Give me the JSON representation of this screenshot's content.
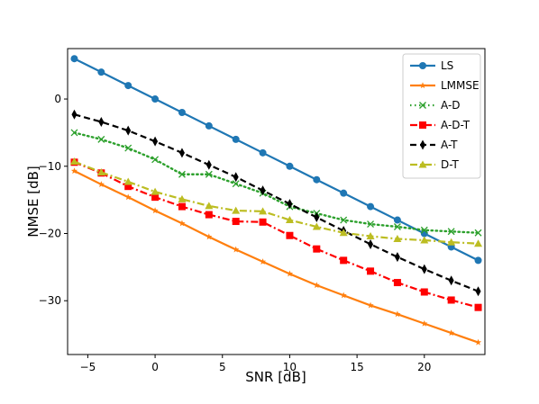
{
  "chart_data": {
    "type": "line",
    "title": "",
    "xlabel": "SNR [dB]",
    "ylabel": "NMSE [dB]",
    "xlim": [
      -6.5,
      24.5
    ],
    "ylim": [
      -38,
      7.5
    ],
    "xticks": [
      -5,
      0,
      5,
      10,
      15,
      20
    ],
    "yticks": [
      0,
      -10,
      -20,
      -30
    ],
    "grid": false,
    "legend_position": "top-right",
    "x": [
      -6,
      -4,
      -2,
      0,
      2,
      4,
      6,
      8,
      10,
      12,
      14,
      16,
      18,
      20,
      22,
      24
    ],
    "series": [
      {
        "name": "LS",
        "color": "#1f77b4",
        "style": "solid",
        "marker": "circle",
        "values": [
          6.0,
          4.0,
          2.0,
          0.0,
          -2.0,
          -4.0,
          -6.0,
          -8.0,
          -10.0,
          -12.0,
          -14.0,
          -16.0,
          -18.0,
          -20.0,
          -22.0,
          -24.0
        ]
      },
      {
        "name": "LMMSE",
        "color": "#ff7f0e",
        "style": "solid",
        "marker": "star",
        "values": [
          -10.7,
          -12.7,
          -14.6,
          -16.6,
          -18.5,
          -20.5,
          -22.4,
          -24.2,
          -26.0,
          -27.7,
          -29.2,
          -30.7,
          -32.0,
          -33.4,
          -34.8,
          -36.2
        ]
      },
      {
        "name": "A-D",
        "color": "#2ca02c",
        "style": "dotted",
        "marker": "x",
        "values": [
          -5.0,
          -6.0,
          -7.3,
          -9.0,
          -11.2,
          -11.2,
          -12.6,
          -14.0,
          -16.0,
          -17.0,
          -18.0,
          -18.6,
          -19.0,
          -19.5,
          -19.7,
          -19.9
        ]
      },
      {
        "name": "A-D-T",
        "color": "#ff0000",
        "style": "dashdot",
        "marker": "square",
        "values": [
          -9.4,
          -11.0,
          -13.0,
          -14.6,
          -16.0,
          -17.2,
          -18.2,
          -18.3,
          -20.3,
          -22.3,
          -24.0,
          -25.6,
          -27.3,
          -28.7,
          -29.9,
          -31.0
        ]
      },
      {
        "name": "A-T",
        "color": "#000000",
        "style": "dashed",
        "marker": "diamond",
        "values": [
          -2.3,
          -3.4,
          -4.7,
          -6.3,
          -8.0,
          -9.8,
          -11.6,
          -13.6,
          -15.6,
          -17.6,
          -19.6,
          -21.6,
          -23.5,
          -25.3,
          -27.0,
          -28.6
        ]
      },
      {
        "name": "D-T",
        "color": "#bcbd22",
        "style": "dashdot",
        "marker": "triangle",
        "values": [
          -9.3,
          -10.9,
          -12.3,
          -13.8,
          -14.9,
          -15.9,
          -16.6,
          -16.7,
          -18.0,
          -19.0,
          -19.9,
          -20.4,
          -20.8,
          -21.0,
          -21.3,
          -21.5
        ]
      }
    ]
  }
}
